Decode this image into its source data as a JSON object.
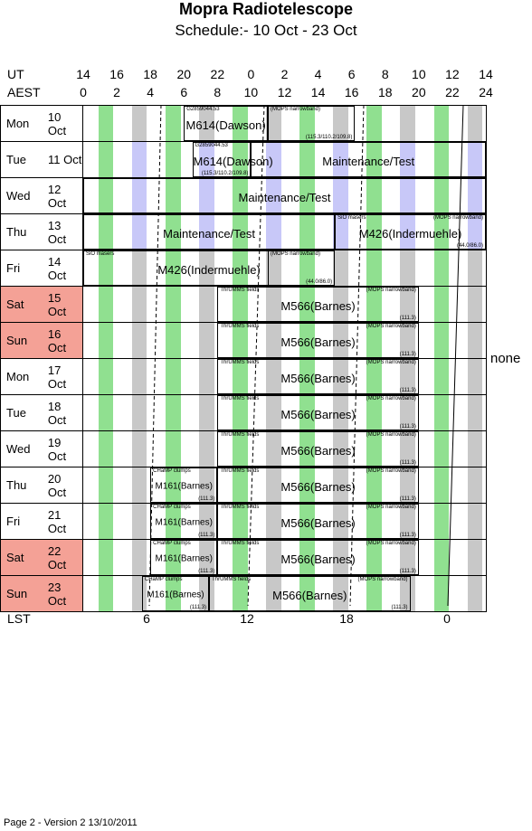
{
  "header": {
    "title": "Mopra Radiotelescope",
    "subtitle": "Schedule:- 10 Oct - 23 Oct"
  },
  "axes": {
    "ut_label": "UT",
    "aest_label": "AEST",
    "lst_label": "LST",
    "ut_ticks": [
      "14",
      "16",
      "18",
      "20",
      "22",
      "0",
      "2",
      "4",
      "6",
      "8",
      "10",
      "12",
      "14"
    ],
    "aest_ticks": [
      "0",
      "2",
      "4",
      "6",
      "8",
      "10",
      "12",
      "14",
      "16",
      "18",
      "20",
      "22",
      "24"
    ],
    "lst_ticks": [
      "6",
      "12",
      "18",
      "0"
    ]
  },
  "colors": {
    "green": "#90e090",
    "grey": "#c8c8c8",
    "lavender": "#c8c8f8",
    "weekend": "#f4a196"
  },
  "days": [
    {
      "dow": "Mon",
      "date": "10 Oct",
      "weekend": false,
      "stripe": "grey",
      "blocks": [
        {
          "start": 6.0,
          "end": 11.0,
          "center": "M614(Dawson)",
          "tl": "G2859044.53",
          "tr": "",
          "br": ""
        },
        {
          "start": 11.0,
          "end": 16.2,
          "center": "",
          "tl": "(MOPS narrowband)",
          "tr": "",
          "br": "(115.3/110.2/109.8)"
        }
      ]
    },
    {
      "dow": "Tue",
      "date": "11 Oct",
      "weekend": false,
      "stripe": "lavender",
      "blocks": [
        {
          "start": 6.5,
          "end": 10.0,
          "center": "M614(Dawson)",
          "tl": "G2859044.53",
          "tr": "",
          "br": "(115.3/110.2/109.8)"
        },
        {
          "start": 10.0,
          "end": 24.0,
          "center": "Maintenance/Test",
          "tl": "",
          "tr": "",
          "br": ""
        }
      ]
    },
    {
      "dow": "Wed",
      "date": "12 Oct",
      "weekend": false,
      "stripe": "lavender",
      "blocks": [
        {
          "start": 0.0,
          "end": 24.0,
          "center": "Maintenance/Test",
          "tl": "",
          "tr": "",
          "br": ""
        }
      ]
    },
    {
      "dow": "Thu",
      "date": "13 Oct",
      "weekend": false,
      "stripe": "lavender",
      "blocks": [
        {
          "start": 0.0,
          "end": 15.0,
          "center": "Maintenance/Test",
          "tl": "",
          "tr": "",
          "br": ""
        },
        {
          "start": 15.0,
          "end": 24.0,
          "center": "M426(Indermuehle)",
          "tl": "SiO masers",
          "tr": "(MOPS narrowband)",
          "br": "(44.0/86.0)"
        }
      ]
    },
    {
      "dow": "Fri",
      "date": "14 Oct",
      "weekend": false,
      "stripe": "grey",
      "blocks": [
        {
          "start": 0.0,
          "end": 15.0,
          "center": "M426(Indermuehle)",
          "tl": "SiO masers",
          "tr": "",
          "br": ""
        },
        {
          "start": 11.0,
          "end": 15.0,
          "center": "",
          "tl": "(MOPS narrowband)",
          "tr": "",
          "br": "(44.0/86.0)"
        }
      ]
    },
    {
      "dow": "Sat",
      "date": "15 Oct",
      "weekend": true,
      "stripe": "grey",
      "blocks": [
        {
          "start": 8.0,
          "end": 20.0,
          "center": "M566(Barnes)",
          "tl": "ThrUMMS fields",
          "tr": "(MOPS narrowband)",
          "br": "(111.3)"
        }
      ]
    },
    {
      "dow": "Sun",
      "date": "16 Oct",
      "weekend": true,
      "stripe": "grey",
      "blocks": [
        {
          "start": 8.0,
          "end": 20.0,
          "center": "M566(Barnes)",
          "tl": "ThrUMMS fields",
          "tr": "(MOPS narrowband)",
          "br": "(111.3)"
        }
      ]
    },
    {
      "dow": "Mon",
      "date": "17 Oct",
      "weekend": false,
      "stripe": "grey",
      "blocks": [
        {
          "start": 8.0,
          "end": 20.0,
          "center": "M566(Barnes)",
          "tl": "ThrUMMS fields",
          "tr": "(MOPS narrowband)",
          "br": "(111.3)"
        }
      ]
    },
    {
      "dow": "Tue",
      "date": "18 Oct",
      "weekend": false,
      "stripe": "grey",
      "blocks": [
        {
          "start": 8.0,
          "end": 20.0,
          "center": "M566(Barnes)",
          "tl": "ThrUMMS fields",
          "tr": "(MOPS narrowband)",
          "br": "(111.3)"
        }
      ]
    },
    {
      "dow": "Wed",
      "date": "19 Oct",
      "weekend": false,
      "stripe": "grey",
      "blocks": [
        {
          "start": 8.0,
          "end": 20.0,
          "center": "M566(Barnes)",
          "tl": "ThrUMMS fields",
          "tr": "(MOPS narrowband)",
          "br": "(111.3)"
        }
      ]
    },
    {
      "dow": "Thu",
      "date": "20 Oct",
      "weekend": false,
      "stripe": "grey",
      "blocks": [
        {
          "start": 4.0,
          "end": 8.0,
          "center": "M161(Barnes)",
          "tl": "CHaMP clumps",
          "tr": "",
          "br": "(111.3)",
          "small": true
        },
        {
          "start": 8.0,
          "end": 20.0,
          "center": "M566(Barnes)",
          "tl": "ThrUMMS fields",
          "tr": "(MOPS narrowband)",
          "br": "(111.3)"
        }
      ]
    },
    {
      "dow": "Fri",
      "date": "21 Oct",
      "weekend": false,
      "stripe": "grey",
      "blocks": [
        {
          "start": 4.0,
          "end": 8.0,
          "center": "M161(Barnes)",
          "tl": "CHaMP clumps",
          "tr": "",
          "br": "(111.3)",
          "small": true
        },
        {
          "start": 8.0,
          "end": 20.0,
          "center": "M566(Barnes)",
          "tl": "ThrUMMS fields",
          "tr": "(MOPS narrowband)",
          "br": "(111.3)"
        }
      ]
    },
    {
      "dow": "Sat",
      "date": "22 Oct",
      "weekend": true,
      "stripe": "grey",
      "blocks": [
        {
          "start": 4.0,
          "end": 8.0,
          "center": "M161(Barnes)",
          "tl": "CHaMP clumps",
          "tr": "",
          "br": "(111.3)",
          "small": true
        },
        {
          "start": 8.0,
          "end": 20.0,
          "center": "M566(Barnes)",
          "tl": "ThrUMMS fields",
          "tr": "(MOPS narrowband)",
          "br": "(111.3)"
        }
      ]
    },
    {
      "dow": "Sun",
      "date": "23 Oct",
      "weekend": true,
      "stripe": "grey",
      "blocks": [
        {
          "start": 3.5,
          "end": 7.5,
          "center": "M161(Barnes)",
          "tl": "CHaMP clumps",
          "tr": "",
          "br": "(111.3)",
          "small": true
        },
        {
          "start": 7.5,
          "end": 19.5,
          "center": "M566(Barnes)",
          "tl": "ThrUMMS fields",
          "tr": "(MOPS narrowband)",
          "br": "(111.3)"
        }
      ]
    }
  ],
  "side_note": "none",
  "footer": "Page 2 - Version 2  13/10/2011"
}
